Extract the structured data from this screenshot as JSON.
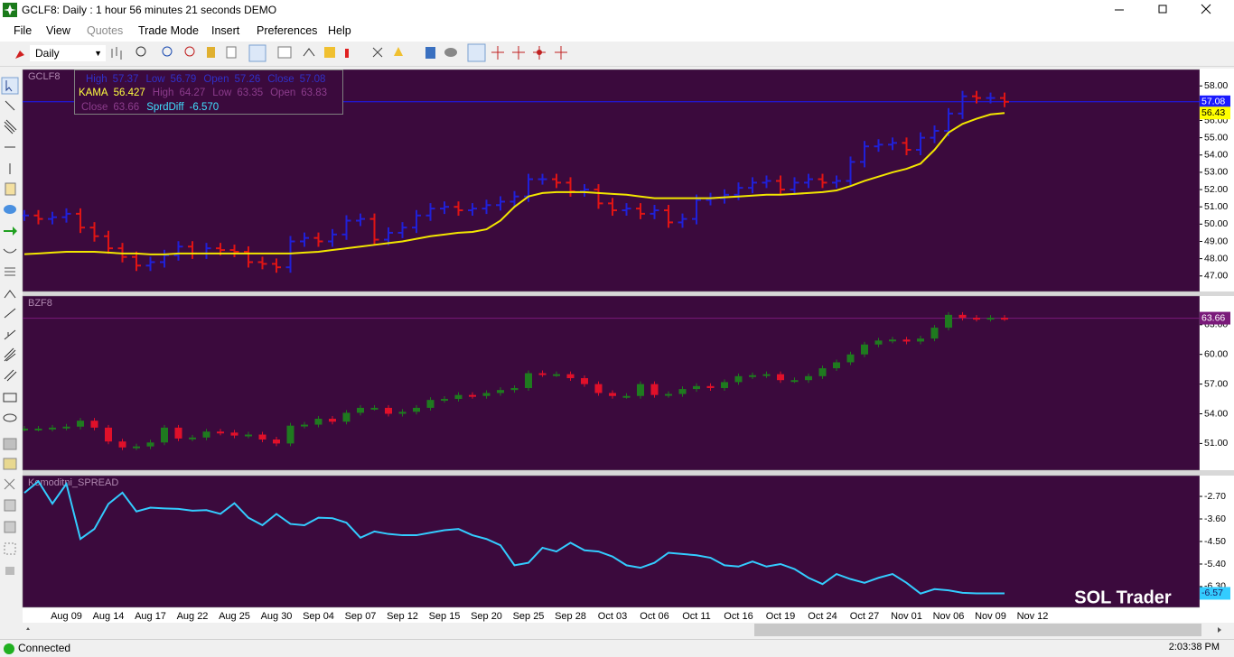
{
  "window": {
    "title": "GCLF8: Daily : 1 hour 56 minutes 21 seconds DEMO"
  },
  "menu": [
    "File",
    "View",
    "Quotes",
    "Trade Mode",
    "Insert",
    "Preferences",
    "Help"
  ],
  "toolbar": {
    "period": "Daily"
  },
  "info_box": [
    [
      {
        "label": "High",
        "value": "57.37",
        "color": "#3030c8"
      },
      {
        "label": "Low",
        "value": "56.79",
        "color": "#3030c8"
      },
      {
        "label": "Open",
        "value": "57.26",
        "color": "#3030c8"
      },
      {
        "label": "Close",
        "value": "57.08",
        "color": "#3030c8"
      }
    ],
    [
      {
        "label": "KAMA",
        "value": "56.427",
        "color": "#ffff40"
      },
      {
        "label": "High",
        "value": "64.27",
        "color": "#8c3c8c"
      },
      {
        "label": "Low",
        "value": "63.35",
        "color": "#8c3c8c"
      },
      {
        "label": "Open",
        "value": "63.83",
        "color": "#8c3c8c"
      }
    ],
    [
      {
        "label": "Close",
        "value": "63.66",
        "color": "#8c3c8c"
      },
      {
        "label": "SprdDiff",
        "value": "-6.570",
        "color": "#40e0ff"
      }
    ]
  ],
  "chart_data": [
    {
      "type": "ohlc",
      "title": "GCLF8",
      "ylim": [
        46.1,
        58.95
      ],
      "yticks": [
        {
          "value": 47,
          "label": "47.00"
        },
        {
          "value": 48,
          "label": "48.00"
        },
        {
          "value": 49,
          "label": "49.00"
        },
        {
          "value": 50,
          "label": "50.00"
        },
        {
          "value": 51,
          "label": "51.00"
        },
        {
          "value": 52,
          "label": "52.00"
        },
        {
          "value": 53,
          "label": "53.00"
        },
        {
          "value": 54,
          "label": "54.00"
        },
        {
          "value": 55,
          "label": "55.00"
        },
        {
          "value": 56,
          "label": "56.00"
        },
        {
          "value": 57,
          "label": "57.00"
        },
        {
          "value": 58,
          "label": "58.00"
        }
      ],
      "up_color": "#2020d8",
      "down_color": "#e01414",
      "series": [
        {
          "name": "GCLF8",
          "values": [
            50.5,
            50.3,
            50.4,
            50.6,
            49.8,
            49.3,
            48.6,
            48.1,
            47.6,
            47.8,
            48.2,
            48.7,
            48.3,
            48.6,
            48.5,
            48.4,
            47.8,
            47.7,
            47.5,
            49.0,
            49.2,
            49.0,
            49.4,
            50.2,
            50.3,
            49.1,
            49.5,
            49.8,
            50.5,
            50.9,
            51.0,
            50.8,
            50.9,
            51.1,
            51.3,
            51.6,
            52.6,
            52.6,
            52.4,
            51.9,
            52.0,
            51.2,
            50.8,
            50.9,
            50.6,
            50.8,
            50.1,
            50.3,
            51.4,
            51.5,
            51.7,
            52.1,
            52.4,
            52.5,
            52.0,
            52.4,
            52.6,
            52.4,
            52.5,
            53.6,
            54.5,
            54.6,
            54.7,
            54.3,
            55.0,
            55.4,
            56.4,
            57.4,
            57.3,
            57.3,
            57.08,
            null,
            null
          ]
        },
        {
          "name": "KAMA",
          "type": "line",
          "color": "#f2e600",
          "values": [
            48.26,
            48.3,
            48.35,
            48.4,
            48.4,
            48.4,
            48.35,
            48.3,
            48.3,
            48.25,
            48.25,
            48.3,
            48.3,
            48.3,
            48.3,
            48.3,
            48.3,
            48.3,
            48.3,
            48.3,
            48.35,
            48.4,
            48.5,
            48.6,
            48.7,
            48.8,
            48.9,
            49.0,
            49.15,
            49.3,
            49.4,
            49.5,
            49.55,
            49.7,
            50.2,
            51.0,
            51.6,
            51.8,
            51.85,
            51.85,
            51.85,
            51.8,
            51.75,
            51.7,
            51.6,
            51.5,
            51.5,
            51.5,
            51.5,
            51.5,
            51.55,
            51.6,
            51.65,
            51.7,
            51.7,
            51.75,
            51.8,
            51.85,
            51.95,
            52.2,
            52.5,
            52.75,
            53.0,
            53.2,
            53.5,
            54.3,
            55.3,
            55.8,
            56.1,
            56.35,
            56.427,
            null,
            null
          ]
        }
      ],
      "last_labels": [
        {
          "value": 57.08,
          "label": "57.08",
          "color": "#1a1aff",
          "text_color": "#ffffff",
          "price_line": true
        },
        {
          "value": 56.43,
          "label": "56.43",
          "color": "#ffff00",
          "text_color": "#000000",
          "price_line": false
        }
      ]
    },
    {
      "type": "candlestick",
      "title": "BZF8",
      "ylim": [
        48.3,
        65.9
      ],
      "yticks": [
        {
          "value": 51,
          "label": "51.00"
        },
        {
          "value": 54,
          "label": "54.00"
        },
        {
          "value": 57,
          "label": "57.00"
        },
        {
          "value": 60,
          "label": "60.00"
        },
        {
          "value": 63,
          "label": "63.00"
        }
      ],
      "up_color": "#1f7a1f",
      "down_color": "#e0102a",
      "series": [
        {
          "name": "BZF8",
          "values": [
            52.5,
            52.5,
            52.6,
            52.7,
            53.3,
            52.6,
            51.2,
            50.6,
            50.7,
            51.1,
            52.6,
            51.5,
            51.6,
            52.2,
            52.1,
            51.8,
            51.9,
            51.4,
            51.0,
            52.8,
            52.9,
            53.5,
            53.2,
            54.1,
            54.6,
            54.6,
            54.0,
            54.2,
            54.6,
            55.4,
            55.5,
            55.9,
            55.8,
            56.1,
            56.4,
            56.6,
            58.1,
            58.0,
            58.0,
            57.6,
            57.0,
            56.1,
            55.8,
            55.8,
            57.0,
            55.9,
            56.0,
            56.5,
            56.8,
            56.6,
            57.2,
            57.8,
            57.9,
            58.0,
            57.4,
            57.4,
            57.8,
            58.6,
            59.2,
            60.0,
            61.0,
            61.4,
            61.5,
            61.3,
            61.6,
            62.7,
            64.0,
            63.7,
            63.6,
            63.7,
            63.66,
            null,
            null
          ]
        }
      ],
      "last_labels": [
        {
          "value": 63.66,
          "label": "63.66",
          "color": "#7a1a7a",
          "text_color": "#ffffff",
          "price_line": true
        }
      ]
    },
    {
      "type": "line",
      "title": "Komoditni_SPREAD",
      "ylim": [
        -7.13,
        -1.87
      ],
      "yticks": [
        {
          "value": -2.7,
          "label": "-2.70"
        },
        {
          "value": -3.6,
          "label": "-3.60"
        },
        {
          "value": -4.5,
          "label": "-4.50"
        },
        {
          "value": -5.4,
          "label": "-5.40"
        },
        {
          "value": -6.3,
          "label": "-6.30"
        }
      ],
      "categories": [
        null,
        null,
        null,
        "Aug 09",
        null,
        null,
        "Aug 14",
        null,
        null,
        "Aug 17",
        null,
        null,
        "Aug 22",
        null,
        null,
        "Aug 25",
        null,
        null,
        "Aug 30",
        null,
        null,
        "Sep 04",
        null,
        null,
        "Sep 07",
        null,
        null,
        "Sep 12",
        null,
        null,
        "Sep 15",
        null,
        null,
        "Sep 20",
        null,
        null,
        "Sep 25",
        null,
        null,
        "Sep 28",
        null,
        null,
        "Oct 03",
        null,
        null,
        "Oct 06",
        null,
        null,
        "Oct 11",
        null,
        null,
        "Oct 16",
        null,
        null,
        "Oct 19",
        null,
        null,
        "Oct 24",
        null,
        null,
        "Oct 27",
        null,
        null,
        "Nov 01",
        null,
        null,
        "Nov 06",
        null,
        null,
        "Nov 09",
        null,
        null,
        "Nov 12"
      ],
      "series": [
        {
          "name": "Komoditni_SPREAD",
          "color": "#33ccff",
          "values": [
            -2.56,
            -2.1,
            -2.99,
            -2.2,
            -4.4,
            -4.0,
            -3.0,
            -2.55,
            -3.3,
            -3.15,
            -3.18,
            -3.2,
            -3.27,
            -3.25,
            -3.4,
            -2.97,
            -3.55,
            -3.85,
            -3.4,
            -3.8,
            -3.85,
            -3.55,
            -3.57,
            -3.75,
            -4.35,
            -4.1,
            -4.2,
            -4.25,
            -4.25,
            -4.15,
            -4.05,
            -4.0,
            -4.25,
            -4.4,
            -4.65,
            -5.45,
            -5.35,
            -4.75,
            -4.9,
            -4.55,
            -4.85,
            -4.9,
            -5.1,
            -5.45,
            -5.55,
            -5.35,
            -4.95,
            -5.0,
            -5.05,
            -5.15,
            -5.45,
            -5.5,
            -5.3,
            -5.5,
            -5.4,
            -5.6,
            -5.95,
            -6.2,
            -5.8,
            -6.0,
            -6.15,
            -5.95,
            -5.8,
            -6.15,
            -6.58,
            -6.4,
            -6.45,
            -6.55,
            -6.57,
            -6.57,
            -6.57,
            null,
            null
          ]
        }
      ],
      "last_labels": [
        {
          "value": -6.57,
          "label": "-6.57",
          "color": "#33ccff",
          "text_color": "#1a1a60",
          "price_line": false
        }
      ]
    }
  ],
  "watermark": "SOL Trader",
  "status": {
    "connection": "Connected",
    "time": "2:03:38 PM"
  }
}
